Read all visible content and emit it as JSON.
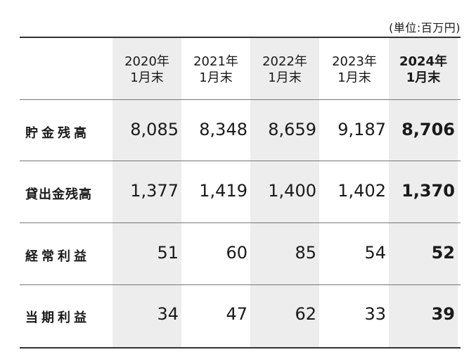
{
  "unit_label": "(単位:百万円)",
  "columns": [
    {
      "line1": "2020年",
      "line2": "1月末"
    },
    {
      "line1": "2021年",
      "line2": "1月末"
    },
    {
      "line1": "2022年",
      "line2": "1月末"
    },
    {
      "line1": "2023年",
      "line2": "1月末"
    },
    {
      "line1": "2024年",
      "line2": "1月末"
    }
  ],
  "rows": [
    {
      "label": "貯金残高",
      "values": [
        "8,085",
        "8,348",
        "8,659",
        "9,187",
        "8,706"
      ]
    },
    {
      "label": "貸出金残高",
      "values": [
        "1,377",
        "1,419",
        "1,400",
        "1,402",
        "1,370"
      ]
    },
    {
      "label": "経常利益",
      "values": [
        "51",
        "60",
        "85",
        "54",
        "52"
      ]
    },
    {
      "label": "当期利益",
      "values": [
        "34",
        "47",
        "62",
        "33",
        "39"
      ]
    }
  ],
  "colors": {
    "shaded_column": "#ededed",
    "text": "#1a1a1a"
  }
}
